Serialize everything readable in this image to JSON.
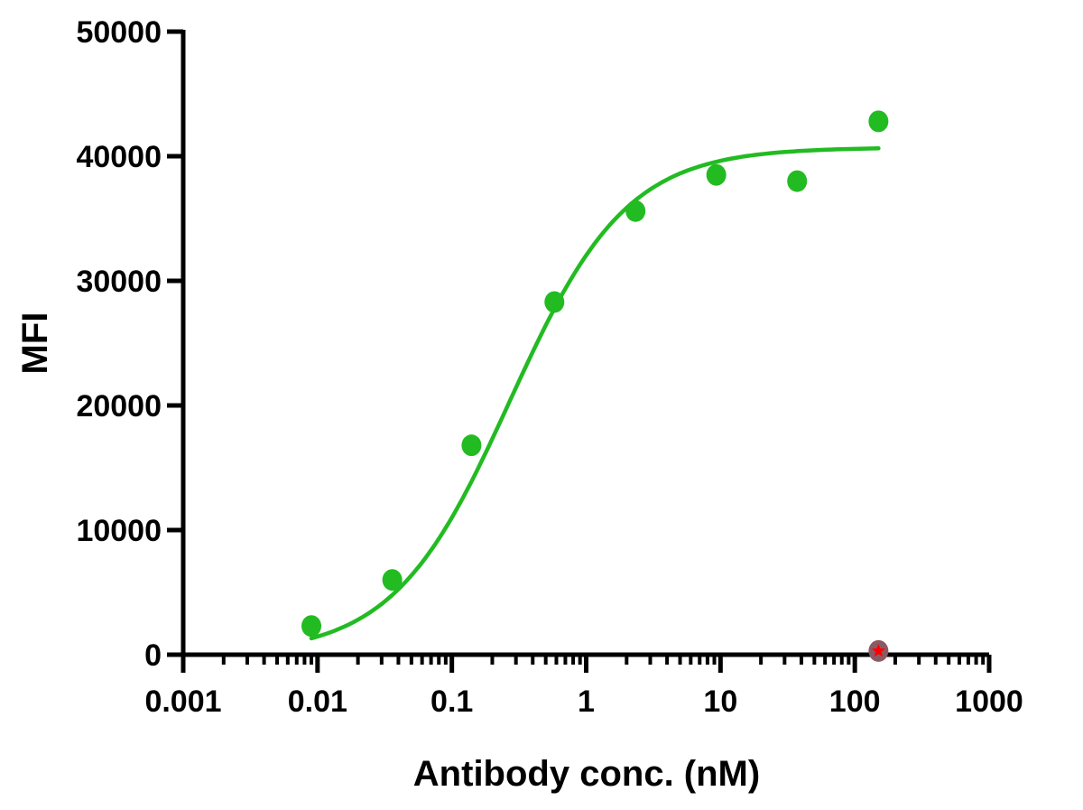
{
  "chart_data": {
    "type": "scatter",
    "title": "",
    "xlabel": "Antibody conc. (nM)",
    "ylabel": "MFI",
    "x_scale": "log",
    "xlim": [
      0.001,
      1000
    ],
    "ylim": [
      0,
      50000
    ],
    "x_ticks": [
      0.001,
      0.01,
      0.1,
      1,
      10,
      100,
      1000
    ],
    "x_tick_labels": [
      "0.001",
      "0.01",
      "0.1",
      "1",
      "10",
      "100",
      "1000"
    ],
    "y_ticks": [
      0,
      10000,
      20000,
      30000,
      40000,
      50000
    ],
    "y_tick_labels": [
      "0",
      "10000",
      "20000",
      "30000",
      "40000",
      "50000"
    ],
    "grid": false,
    "legend": "none",
    "series": [
      {
        "color": "#22bb22",
        "marker": "circle",
        "points": [
          {
            "x": 0.009,
            "y": 2300
          },
          {
            "x": 0.036,
            "y": 6000
          },
          {
            "x": 0.14,
            "y": 16800
          },
          {
            "x": 0.58,
            "y": 28300
          },
          {
            "x": 2.33,
            "y": 35600
          },
          {
            "x": 9.3,
            "y": 38500
          },
          {
            "x": 37.2,
            "y": 38000
          },
          {
            "x": 150,
            "y": 42800
          }
        ],
        "fit": {
          "type": "sigmoidal",
          "bottom": 0,
          "top": 40700,
          "ec50": 0.27,
          "hill": 1.0,
          "x_range": [
            0.009,
            150
          ],
          "color": "#22bb22"
        }
      },
      {
        "color": "#8a5a64",
        "marker": "circle",
        "points": [
          {
            "x": 150,
            "y": 300
          }
        ]
      }
    ],
    "annotations": [
      {
        "type": "star-marker",
        "x": 150,
        "y": 300,
        "color": "#ff0000"
      }
    ]
  }
}
